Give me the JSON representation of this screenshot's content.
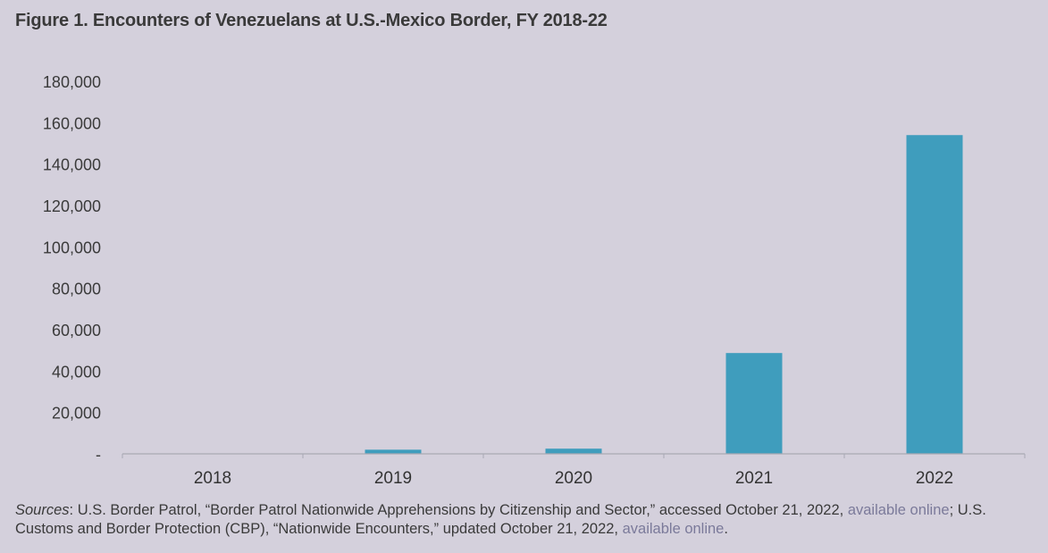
{
  "page": {
    "title": "Figure 1. Encounters of Venezuelans at U.S.-Mexico Border, FY 2018-22",
    "sources": {
      "label": "Sources",
      "text1": ": U.S. Border Patrol, “Border Patrol Nationwide Apprehensions by Citizenship and Sector,” accessed October 21, 2022, ",
      "link1": "available online",
      "text2": "; U.S. Customs and Border Protection (CBP), “Nationwide Encounters,” updated October 21, 2022, ",
      "link2": "available online",
      "text3": "."
    }
  },
  "colors": {
    "bar": "#3f9dbd",
    "background": "#d4d0dc",
    "axis": "#a9a9b3",
    "link": "#7b7a9a"
  },
  "chart_data": {
    "type": "bar",
    "title": "Figure 1. Encounters of Venezuelans at U.S.-Mexico Border, FY 2018-22",
    "xlabel": "",
    "ylabel": "",
    "categories": [
      "2018",
      "2019",
      "2020",
      "2021",
      "2022"
    ],
    "values": [
      100,
      2000,
      2500,
      48700,
      154000
    ],
    "ylim": [
      0,
      180000
    ],
    "yticks": [
      0,
      20000,
      40000,
      60000,
      80000,
      100000,
      120000,
      140000,
      160000,
      180000
    ],
    "ytick_labels": [
      "-",
      "20,000",
      "40,000",
      "60,000",
      "80,000",
      "100,000",
      "120,000",
      "140,000",
      "160,000",
      "180,000"
    ],
    "grid": false,
    "legend": "none"
  }
}
